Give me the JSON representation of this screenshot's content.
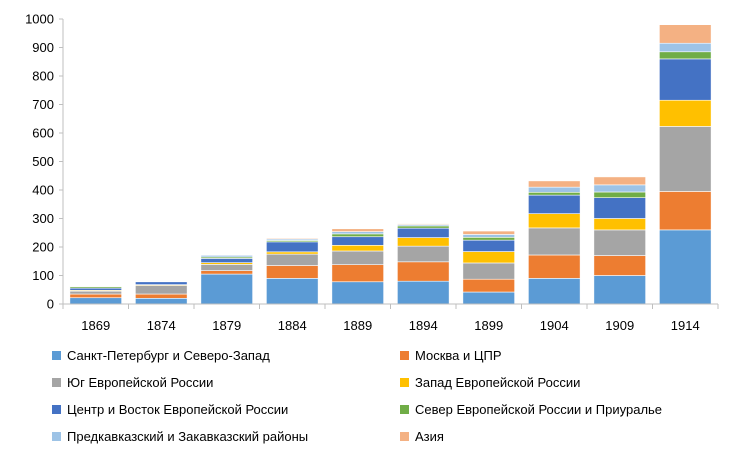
{
  "chart_data": {
    "type": "bar",
    "stacked": true,
    "categories": [
      "1869",
      "1874",
      "1879",
      "1884",
      "1889",
      "1894",
      "1899",
      "1904",
      "1909",
      "1914"
    ],
    "ylim": [
      0,
      1000
    ],
    "yticks": [
      0,
      100,
      200,
      300,
      400,
      500,
      600,
      700,
      800,
      900,
      1000
    ],
    "grid": false,
    "legend_position": "bottom",
    "series": [
      {
        "name": "Санкт-Петербург и Северо-Запад",
        "color": "#5B9BD5",
        "values": [
          22,
          20,
          105,
          90,
          78,
          80,
          42,
          90,
          100,
          260
        ]
      },
      {
        "name": "Москва и ЦПР",
        "color": "#ED7D31",
        "values": [
          13,
          15,
          12,
          45,
          60,
          68,
          45,
          82,
          70,
          135
        ]
      },
      {
        "name": "Юг Европейской России",
        "color": "#A5A5A5",
        "values": [
          10,
          30,
          22,
          40,
          48,
          55,
          57,
          95,
          90,
          228
        ]
      },
      {
        "name": "Запад Европейской России",
        "color": "#FFC000",
        "values": [
          3,
          3,
          6,
          8,
          20,
          30,
          40,
          50,
          40,
          92
        ]
      },
      {
        "name": "Центр и Восток Европейской России",
        "color": "#4472C4",
        "values": [
          8,
          10,
          15,
          35,
          30,
          33,
          40,
          65,
          73,
          145
        ]
      },
      {
        "name": "Север Европейской России и Приуралье",
        "color": "#70AD47",
        "values": [
          5,
          2,
          5,
          5,
          10,
          8,
          10,
          10,
          20,
          25
        ]
      },
      {
        "name": "Предкавказский и Закавказский районы",
        "color": "#9DC3E6",
        "values": [
          2,
          1,
          6,
          5,
          8,
          5,
          10,
          18,
          25,
          30
        ]
      },
      {
        "name": "Азия",
        "color": "#F4B183",
        "values": [
          0,
          0,
          2,
          3,
          10,
          3,
          12,
          22,
          28,
          65
        ]
      }
    ]
  }
}
